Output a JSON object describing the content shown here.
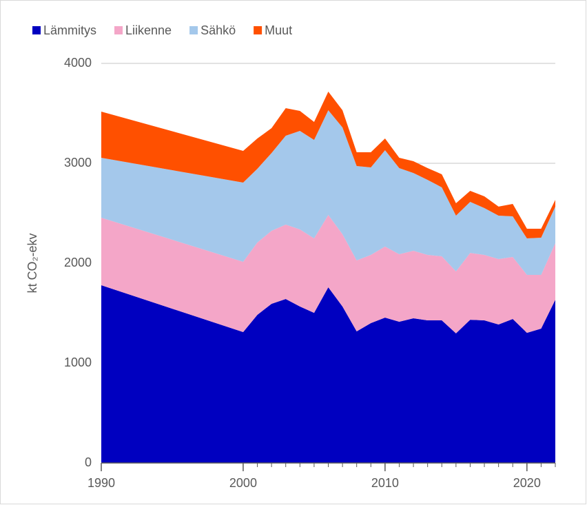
{
  "chart_data": {
    "type": "stacked_area",
    "y_label": "kt CO₂-ekv",
    "x": [
      1990,
      2000,
      2001,
      2002,
      2003,
      2004,
      2005,
      2006,
      2007,
      2008,
      2009,
      2010,
      2011,
      2012,
      2013,
      2014,
      2015,
      2016,
      2017,
      2018,
      2019,
      2020,
      2021,
      2022
    ],
    "series": [
      {
        "name": "Lämmitys",
        "color": "#0000c0",
        "values": [
          1779,
          1310,
          1483,
          1593,
          1641,
          1566,
          1503,
          1759,
          1566,
          1317,
          1400,
          1455,
          1414,
          1448,
          1428,
          1428,
          1297,
          1434,
          1428,
          1386,
          1441,
          1303,
          1345,
          1634
        ]
      },
      {
        "name": "Liikenne",
        "color": "#f4a6c8",
        "values": [
          676,
          704,
          724,
          731,
          745,
          772,
          745,
          724,
          724,
          711,
          683,
          711,
          676,
          676,
          655,
          641,
          620,
          669,
          655,
          655,
          621,
          580,
          538,
          566
        ]
      },
      {
        "name": "Sähkö",
        "color": "#a4c8eb",
        "values": [
          600,
          793,
          738,
          779,
          890,
          986,
          986,
          1048,
          1069,
          944,
          876,
          965,
          862,
          779,
          751,
          690,
          559,
          511,
          469,
          435,
          407,
          365,
          372,
          366
        ]
      },
      {
        "name": "Muut",
        "color": "#ff5000",
        "values": [
          462,
          317,
          303,
          249,
          276,
          200,
          180,
          186,
          172,
          138,
          151,
          117,
          103,
          118,
          118,
          131,
          124,
          110,
          117,
          90,
          124,
          97,
          90,
          68
        ]
      }
    ],
    "xlim": [
      1990,
      2022
    ],
    "xticks": [
      1990,
      2000,
      2010,
      2020
    ],
    "ylim": [
      0,
      4000
    ],
    "yticks": [
      0,
      1000,
      2000,
      3000,
      4000
    ],
    "grid": true,
    "legend": "top-left"
  }
}
